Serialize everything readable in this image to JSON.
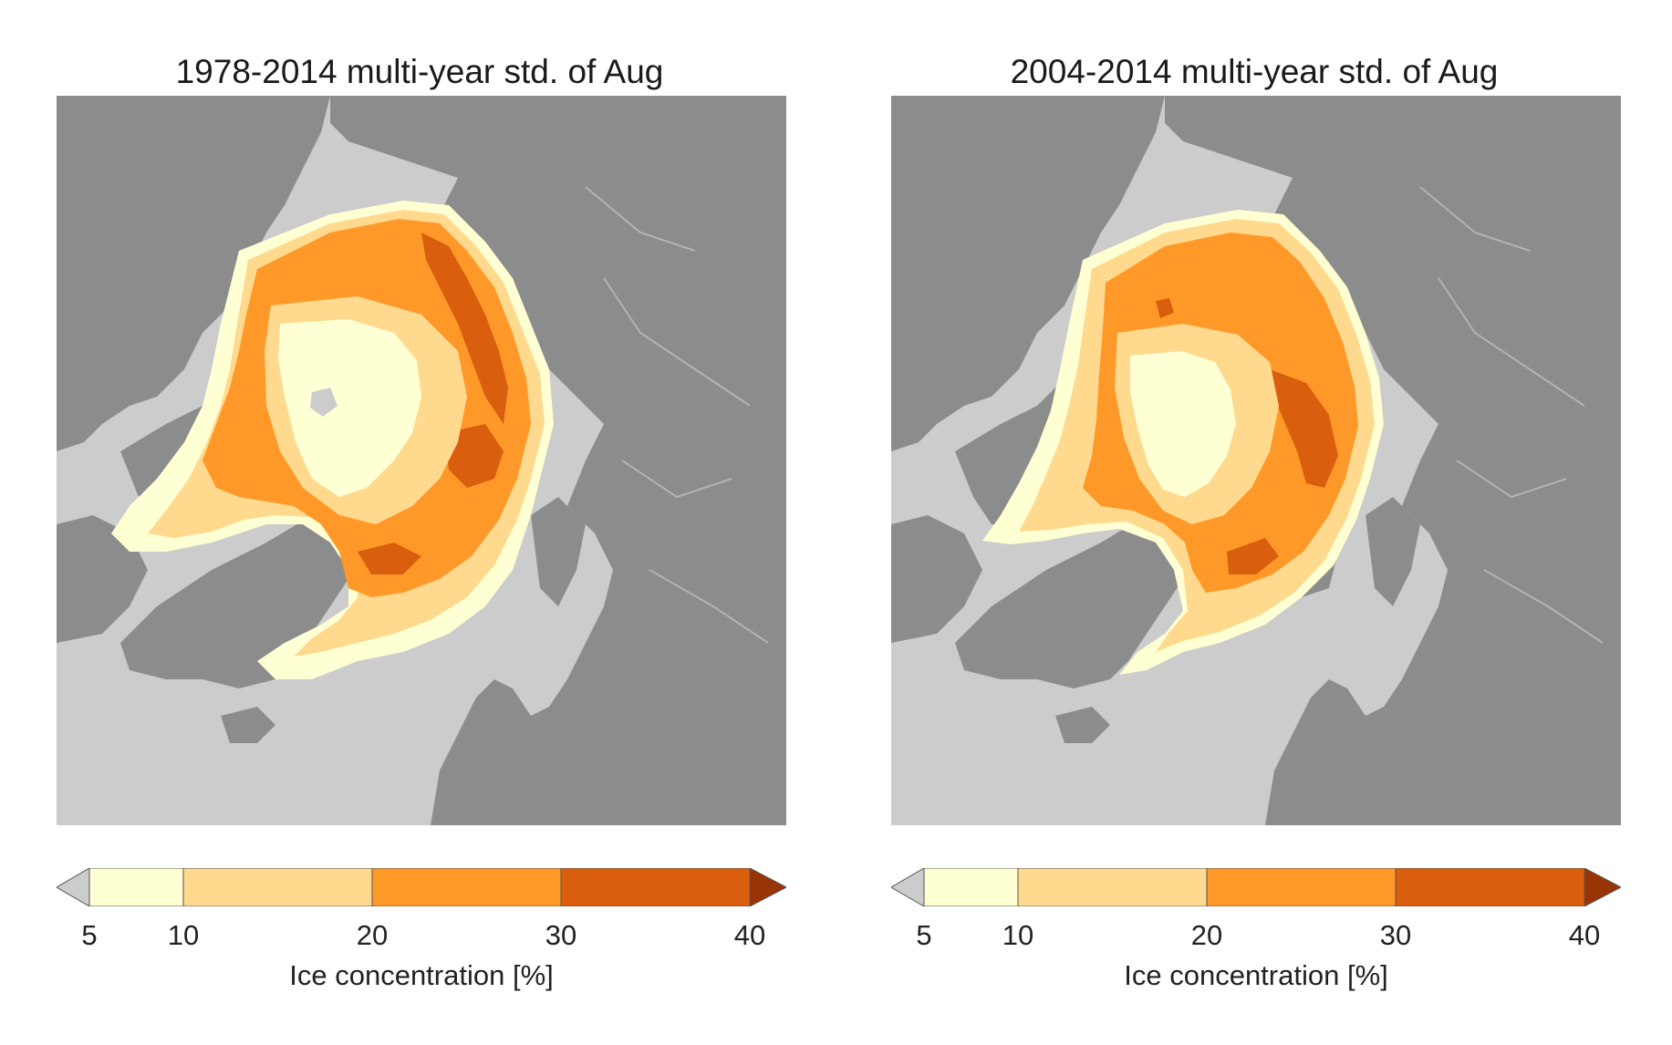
{
  "panels": [
    {
      "title": "1978-2014 multi-year std. of Aug",
      "colorbar": {
        "label": "Ice concentration [%]",
        "ticks": [
          "5",
          "10",
          "20",
          "30",
          "40"
        ],
        "bins": [
          {
            "from": 5,
            "to": 10,
            "color": "#ffffd4"
          },
          {
            "from": 10,
            "to": 20,
            "color": "#fed98e"
          },
          {
            "from": 20,
            "to": 30,
            "color": "#fe9929"
          },
          {
            "from": 30,
            "to": 40,
            "color": "#d95f0e"
          }
        ],
        "under_color": "#cccccc",
        "over_color": "#993404"
      }
    },
    {
      "title": "2004-2014 multi-year std. of Aug",
      "colorbar": {
        "label": "Ice concentration [%]",
        "ticks": [
          "5",
          "10",
          "20",
          "30",
          "40"
        ],
        "bins": [
          {
            "from": 5,
            "to": 10,
            "color": "#ffffd4"
          },
          {
            "from": 10,
            "to": 20,
            "color": "#fed98e"
          },
          {
            "from": 20,
            "to": 30,
            "color": "#fe9929"
          },
          {
            "from": 30,
            "to": 40,
            "color": "#d95f0e"
          }
        ],
        "under_color": "#cccccc",
        "over_color": "#993404"
      }
    }
  ],
  "map_colors": {
    "ocean": "#cccccc",
    "land": "#8c8c8c",
    "rivers": "#b3b3b3"
  }
}
